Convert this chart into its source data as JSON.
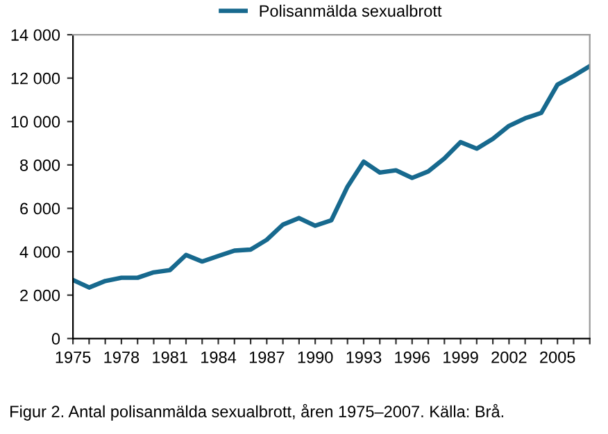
{
  "chart_data": {
    "type": "line",
    "x": [
      1975,
      1976,
      1977,
      1978,
      1979,
      1980,
      1981,
      1982,
      1983,
      1984,
      1985,
      1986,
      1987,
      1988,
      1989,
      1990,
      1991,
      1992,
      1993,
      1994,
      1995,
      1996,
      1997,
      1998,
      1999,
      2000,
      2001,
      2002,
      2003,
      2004,
      2005,
      2006,
      2007
    ],
    "series": [
      {
        "name": "Polisanmälda sexualbrott",
        "color": "#17698e",
        "values": [
          2700,
          2350,
          2650,
          2800,
          2800,
          3050,
          3150,
          3850,
          3550,
          3800,
          4050,
          4100,
          4550,
          5250,
          5550,
          5200,
          5450,
          7000,
          8150,
          7650,
          7750,
          7400,
          7700,
          8300,
          9050,
          8750,
          9200,
          9800,
          10150,
          10400,
          11700,
          12100,
          12550
        ]
      }
    ],
    "xlim": [
      1975,
      2007
    ],
    "xticks": [
      1975,
      {
        "value": 1976,
        "label": null
      },
      {
        "value": 1977,
        "label": null
      },
      1978,
      {
        "value": 1979,
        "label": null
      },
      {
        "value": 1980,
        "label": null
      },
      1981,
      {
        "value": 1982,
        "label": null
      },
      {
        "value": 1983,
        "label": null
      },
      1984,
      {
        "value": 1985,
        "label": null
      },
      {
        "value": 1986,
        "label": null
      },
      1987,
      {
        "value": 1988,
        "label": null
      },
      {
        "value": 1989,
        "label": null
      },
      1990,
      {
        "value": 1991,
        "label": null
      },
      {
        "value": 1992,
        "label": null
      },
      1993,
      {
        "value": 1994,
        "label": null
      },
      {
        "value": 1995,
        "label": null
      },
      1996,
      {
        "value": 1997,
        "label": null
      },
      {
        "value": 1998,
        "label": null
      },
      1999,
      {
        "value": 2000,
        "label": null
      },
      {
        "value": 2001,
        "label": null
      },
      2002,
      {
        "value": 2003,
        "label": null
      },
      {
        "value": 2004,
        "label": null
      },
      2005,
      {
        "value": 2006,
        "label": null
      },
      {
        "value": 2007,
        "label": null
      }
    ],
    "ylim": [
      0,
      14000
    ],
    "yticks": [
      0,
      {
        "value": 2000,
        "label": "2 000"
      },
      {
        "value": 4000,
        "label": "4 000"
      },
      {
        "value": 6000,
        "label": "6 000"
      },
      {
        "value": 8000,
        "label": "8 000"
      },
      {
        "value": 10000,
        "label": "10 000"
      },
      {
        "value": 12000,
        "label": "12 000"
      },
      {
        "value": 14000,
        "label": "14 000"
      }
    ],
    "legend": "top",
    "grid": false,
    "annotations": [
      "Figur 2. Antal polisanmälda sexualbrott, åren 1975–2007. Källa: Brå."
    ]
  }
}
